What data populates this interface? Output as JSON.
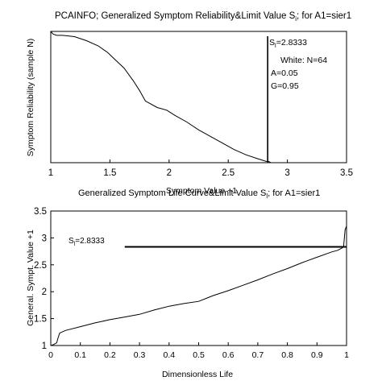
{
  "chart_data": [
    {
      "type": "line",
      "title": "PCAINFO; Generalized Symptom Reliability&Limit Value S",
      "title_sub": "i",
      "title_tail": "; for A1=sier1",
      "xlabel": "Symptom Value +1",
      "ylabel": "Symptom Reliability (sample N)",
      "xlim": [
        1,
        3.5
      ],
      "ylim": [
        0,
        1
      ],
      "x_ticks": [
        "1",
        "1.5",
        "2",
        "2.5",
        "3",
        "3.5"
      ],
      "x_tick_values": [
        1,
        1.5,
        2,
        2.5,
        3,
        3.5
      ],
      "grid": false,
      "series": [
        {
          "x": [
            1.0,
            1.02,
            1.05,
            1.1,
            1.2,
            1.3,
            1.4,
            1.48,
            1.55,
            1.62,
            1.7,
            1.75,
            1.8,
            1.9,
            1.98,
            2.05,
            2.15,
            2.25,
            2.35,
            2.45,
            2.55,
            2.65,
            2.75,
            2.82,
            2.84,
            2.86,
            3.0,
            3.2
          ],
          "y": [
            1.0,
            0.98,
            0.97,
            0.97,
            0.96,
            0.93,
            0.89,
            0.84,
            0.78,
            0.72,
            0.62,
            0.55,
            0.47,
            0.42,
            0.4,
            0.36,
            0.31,
            0.25,
            0.2,
            0.15,
            0.1,
            0.06,
            0.03,
            0.01,
            0.01,
            0.0,
            0.0,
            0.0
          ],
          "color": "#000000"
        }
      ],
      "limit_line_x": 2.8333,
      "annotations": [
        {
          "text": "S",
          "sub": "l",
          "tail": "=2.8333"
        },
        {
          "text": "White: N=64"
        },
        {
          "text": "A=0.05"
        },
        {
          "text": "G=0.95"
        }
      ]
    },
    {
      "type": "line",
      "title": "Generalized Symptom Life Curve&Limit Value S",
      "title_sub": "l",
      "title_tail": "; for A1=sier1",
      "xlabel": "Dimensionless Life",
      "ylabel": "General. Sympt. Value +1",
      "xlim": [
        0,
        1
      ],
      "ylim": [
        1,
        3.5
      ],
      "x_ticks": [
        "0",
        "0.1",
        "0.2",
        "0.3",
        "0.4",
        "0.5",
        "0.6",
        "0.7",
        "0.8",
        "0.9",
        "1"
      ],
      "x_tick_values": [
        0,
        0.1,
        0.2,
        0.3,
        0.4,
        0.5,
        0.6,
        0.7,
        0.8,
        0.9,
        1.0
      ],
      "y_ticks": [
        "1",
        "1.5",
        "2",
        "2.5",
        "3",
        "3.5"
      ],
      "y_tick_values": [
        1,
        1.5,
        2,
        2.5,
        3,
        3.5
      ],
      "grid": false,
      "series": [
        {
          "x": [
            0.0,
            0.01,
            0.02,
            0.025,
            0.03,
            0.05,
            0.1,
            0.15,
            0.2,
            0.25,
            0.3,
            0.35,
            0.4,
            0.45,
            0.5,
            0.55,
            0.6,
            0.65,
            0.7,
            0.75,
            0.8,
            0.85,
            0.9,
            0.95,
            0.97,
            0.98,
            0.99,
            0.995,
            1.0
          ],
          "y": [
            1.0,
            1.02,
            1.05,
            1.15,
            1.23,
            1.28,
            1.35,
            1.42,
            1.48,
            1.53,
            1.58,
            1.66,
            1.73,
            1.78,
            1.82,
            1.93,
            2.02,
            2.12,
            2.22,
            2.33,
            2.43,
            2.54,
            2.64,
            2.74,
            2.77,
            2.8,
            2.83,
            3.15,
            3.22
          ],
          "color": "#000000"
        }
      ],
      "limit_line_y": 2.8333,
      "limit_line_x_start": 0.25,
      "annotations": [
        {
          "text": "S",
          "sub": "l",
          "tail": "=2.8333"
        }
      ]
    }
  ]
}
